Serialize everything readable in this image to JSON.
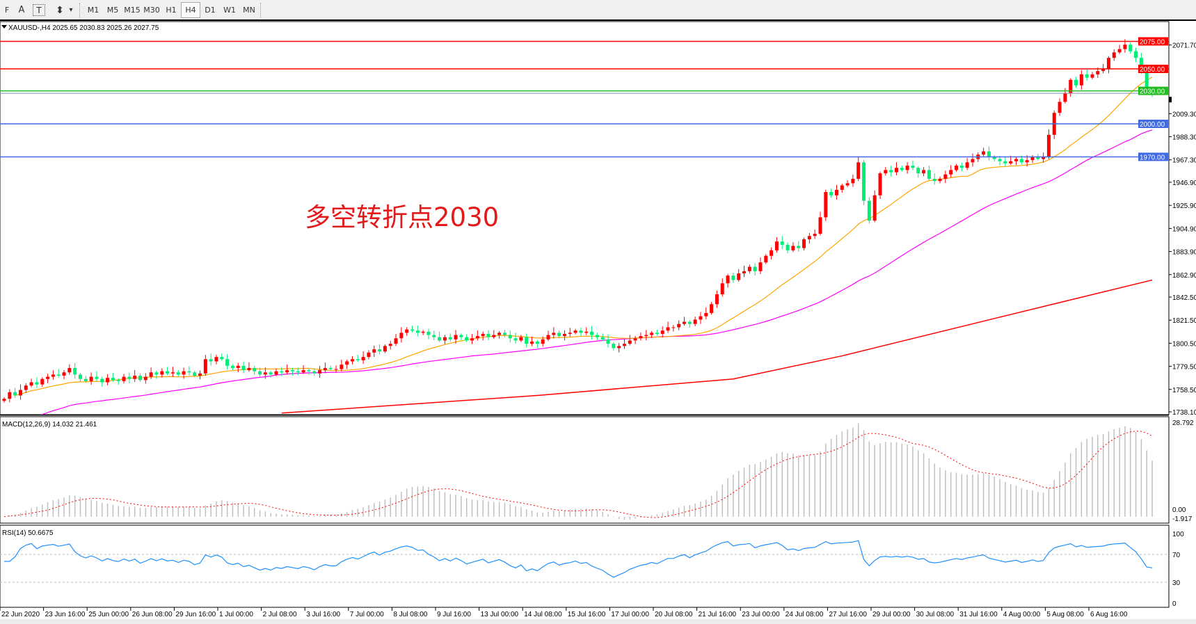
{
  "toolbar": {
    "tools": [
      {
        "icon": "fibonacci-fan-icon",
        "label": "F"
      },
      {
        "icon": "text-icon",
        "label": "A"
      },
      {
        "icon": "text-label-icon",
        "label": "T"
      },
      {
        "icon": "arrows-icon",
        "label": "⬍"
      }
    ],
    "dropdown_icon": "▾",
    "timeframes": [
      "M1",
      "M5",
      "M15",
      "M30",
      "H1",
      "H4",
      "D1",
      "W1",
      "MN"
    ],
    "active_timeframe": "H4"
  },
  "main": {
    "header": "XAUUSD-,H4  2025.65 2030.83 2025.26 2027.75",
    "annotation": "多空转折点2030",
    "price_labels": [
      "2071.70",
      "2009.30",
      "1988.30",
      "1967.30",
      "1946.90",
      "1925.90",
      "1904.90",
      "1883.90",
      "1862.90",
      "1842.50",
      "1821.50",
      "1800.50",
      "1779.50",
      "1758.50",
      "1738.10"
    ],
    "levels": [
      {
        "value": 2075.0,
        "label": "2075.00",
        "color": "#ff0000"
      },
      {
        "value": 2050.0,
        "label": "2050.00",
        "color": "#ff0000"
      },
      {
        "value": 2030.0,
        "label": "2030.00",
        "color": "#22bb22"
      },
      {
        "value": 2000.0,
        "label": "2000.00",
        "color": "#4169e1"
      },
      {
        "value": 1970.0,
        "label": "1970.00",
        "color": "#4169e1"
      }
    ],
    "current_price": {
      "value": 2027.75,
      "label": "2027.75"
    }
  },
  "macd": {
    "header": "MACD(12,26,9) 14.032 21.461",
    "max_label": "28.792",
    "zero_label": "0.00",
    "min_label": "-1.917"
  },
  "rsi": {
    "header": "RSI(14) 50.6675",
    "levels": [
      "100",
      "70",
      "30",
      "0"
    ]
  },
  "time_labels": [
    "22 Jun 2020",
    "23 Jun 16:00",
    "25 Jun 00:00",
    "26 Jun 08:00",
    "29 Jun 16:00",
    "1 Jul 00:00",
    "2 Jul 08:00",
    "3 Jul 16:00",
    "7 Jul 00:00",
    "8 Jul 08:00",
    "9 Jul 16:00",
    "13 Jul 00:00",
    "14 Jul 08:00",
    "15 Jul 16:00",
    "17 Jul 00:00",
    "20 Jul 08:00",
    "21 Jul 16:00",
    "23 Jul 00:00",
    "24 Jul 08:00",
    "27 Jul 16:00",
    "29 Jul 00:00",
    "30 Jul 08:00",
    "31 Jul 16:00",
    "4 Aug 00:00",
    "5 Aug 08:00",
    "6 Aug 16:00"
  ],
  "colors": {
    "up_candle": "#ff0000",
    "down_candle": "#00ee76",
    "ma_fast": "#ffa500",
    "ma_mid": "#ff00ff",
    "ma_slow": "#ff0000",
    "macd_hist": "#c0c0c0",
    "macd_signal": "#ff0000",
    "rsi_line": "#1e90ff"
  },
  "chart_data": {
    "type": "candlestick",
    "symbol": "XAUUSD-",
    "timeframe": "H4",
    "ylim": [
      1738.1,
      2075.0
    ],
    "closes": [
      1750,
      1756,
      1753,
      1758,
      1762,
      1765,
      1763,
      1768,
      1770,
      1772,
      1771,
      1774,
      1778,
      1772,
      1768,
      1766,
      1770,
      1768,
      1765,
      1769,
      1767,
      1766,
      1770,
      1768,
      1771,
      1767,
      1770,
      1774,
      1772,
      1775,
      1773,
      1774,
      1772,
      1775,
      1774,
      1771,
      1773,
      1786,
      1784,
      1788,
      1786,
      1780,
      1778,
      1780,
      1776,
      1778,
      1775,
      1772,
      1774,
      1772,
      1775,
      1774,
      1776,
      1775,
      1774,
      1776,
      1775,
      1773,
      1776,
      1778,
      1777,
      1777,
      1781,
      1784,
      1786,
      1785,
      1788,
      1792,
      1795,
      1793,
      1798,
      1800,
      1805,
      1810,
      1813,
      1812,
      1810,
      1811,
      1808,
      1806,
      1803,
      1806,
      1804,
      1808,
      1806,
      1803,
      1805,
      1807,
      1809,
      1806,
      1808,
      1810,
      1808,
      1805,
      1803,
      1806,
      1800,
      1802,
      1800,
      1804,
      1808,
      1810,
      1807,
      1809,
      1810,
      1812,
      1810,
      1811,
      1808,
      1806,
      1804,
      1800,
      1796,
      1798,
      1800,
      1803,
      1805,
      1807,
      1808,
      1810,
      1809,
      1812,
      1815,
      1815,
      1818,
      1820,
      1818,
      1822,
      1825,
      1828,
      1836,
      1845,
      1855,
      1862,
      1858,
      1864,
      1866,
      1870,
      1866,
      1874,
      1880,
      1885,
      1893,
      1890,
      1885,
      1889,
      1887,
      1895,
      1898,
      1900,
      1915,
      1938,
      1935,
      1940,
      1944,
      1946,
      1950,
      1965,
      1930,
      1912,
      1935,
      1955,
      1958,
      1956,
      1960,
      1958,
      1962,
      1960,
      1955,
      1958,
      1950,
      1948,
      1950,
      1954,
      1958,
      1962,
      1960,
      1965,
      1968,
      1972,
      1975,
      1970,
      1968,
      1966,
      1964,
      1966,
      1968,
      1965,
      1967,
      1970,
      1968,
      1970,
      1990,
      2010,
      2020,
      2028,
      2040,
      2035,
      2045,
      2042,
      2045,
      2048,
      2050,
      2060,
      2065,
      2068,
      2072,
      2066,
      2060,
      2048,
      2030,
      2027.75
    ],
    "ma_fast_period": 20,
    "ma_mid_period": 50,
    "ma_slow_points": [
      [
        51,
        1737
      ],
      [
        98,
        1753
      ],
      [
        134,
        1768
      ],
      [
        154,
        1789
      ],
      [
        182,
        1823
      ],
      [
        211,
        1858
      ]
    ],
    "macd_range": [
      -1.917,
      28.792
    ],
    "rsi_range": [
      0,
      100
    ]
  }
}
